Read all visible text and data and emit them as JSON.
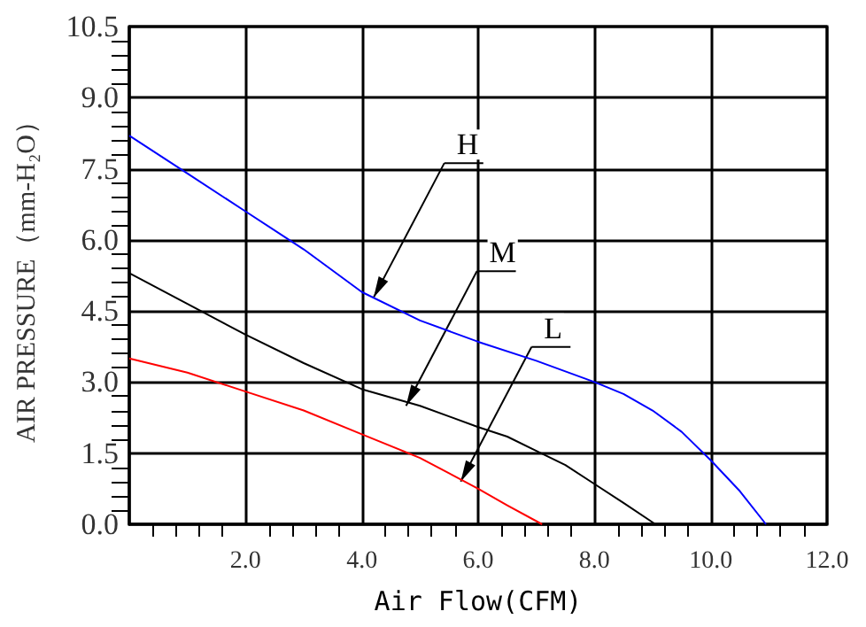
{
  "chart_data": {
    "type": "line",
    "xlabel": "Air Flow(CFM)",
    "ylabel": "AIR PRESSURE（mm-H₂O）",
    "xlim": [
      0,
      12
    ],
    "ylim": [
      0,
      10.5
    ],
    "xticks": [
      {
        "value": 0,
        "label": null
      },
      {
        "value": 2,
        "label": "2.0"
      },
      {
        "value": 4,
        "label": "4.0"
      },
      {
        "value": 6,
        "label": "6.0"
      },
      {
        "value": 8,
        "label": "8.0"
      },
      {
        "value": 10,
        "label": "10.0"
      },
      {
        "value": 12,
        "label": "12.0"
      }
    ],
    "yticks": [
      {
        "value": 0,
        "label": "0.0"
      },
      1.5,
      {
        "value": 3,
        "label": "3.0"
      },
      4.5,
      {
        "value": 6,
        "label": "6.0"
      },
      7.5,
      {
        "value": 9,
        "label": "9.0"
      },
      10.5
    ],
    "grid": true,
    "marker": "none",
    "line_style": "solid",
    "series": [
      {
        "color": "#0000ff",
        "x": [
          0,
          1,
          2,
          3,
          4,
          5,
          6,
          7,
          8,
          8.5,
          9,
          9.5,
          10,
          10.5,
          10.95
        ],
        "values": [
          8.2,
          7.4,
          6.6,
          5.8,
          4.9,
          4.3,
          3.85,
          3.45,
          3.0,
          2.75,
          2.4,
          1.95,
          1.35,
          0.7,
          0
        ]
      },
      {
        "color": "#000000",
        "x": [
          0,
          1,
          2,
          3,
          4,
          5,
          6,
          6.5,
          7,
          7.5,
          8,
          8.5,
          9.05
        ],
        "values": [
          5.3,
          4.65,
          4.0,
          3.4,
          2.85,
          2.5,
          2.05,
          1.85,
          1.55,
          1.25,
          0.85,
          0.45,
          0
        ]
      },
      {
        "color": "#ff0000",
        "x": [
          0,
          1,
          2,
          3,
          4,
          5,
          6,
          6.5,
          7.1
        ],
        "values": [
          3.5,
          3.2,
          2.8,
          2.4,
          1.9,
          1.4,
          0.75,
          0.4,
          0
        ]
      }
    ],
    "annotations": [
      {
        "text": "H",
        "x": 4.2,
        "y": 4.78
      },
      {
        "text": "M",
        "x": 4.76,
        "y": 2.5
      },
      {
        "text": "L",
        "x": 5.7,
        "y": 0.9
      }
    ]
  }
}
